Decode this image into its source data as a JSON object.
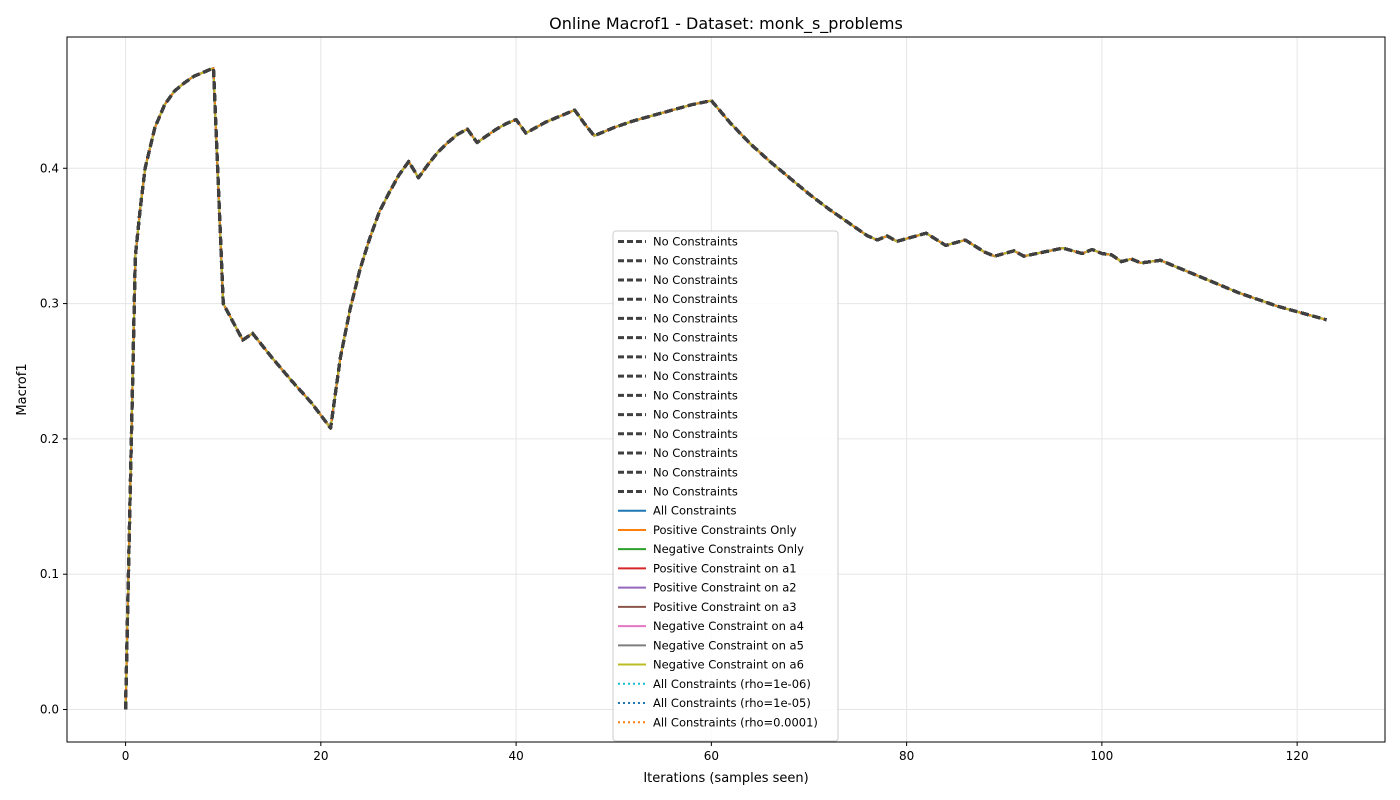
{
  "chart_data": {
    "type": "line",
    "title": "Online Macrof1 - Dataset: monk_s_problems",
    "xlabel": "Iterations (samples seen)",
    "ylabel": "Macrof1",
    "xlim": [
      -6,
      129
    ],
    "ylim": [
      -0.024,
      0.497
    ],
    "xticks": [
      0,
      20,
      40,
      60,
      80,
      100,
      120
    ],
    "yticks": [
      0.0,
      0.1,
      0.2,
      0.3,
      0.4
    ],
    "ytick_labels": [
      "0.0",
      "0.1",
      "0.2",
      "0.3",
      "0.4"
    ],
    "grid": true,
    "legend_position": "center",
    "x": [
      0,
      0.5,
      1,
      1.5,
      2,
      3,
      4,
      5,
      6,
      7,
      8,
      9,
      10,
      12,
      13,
      15,
      17,
      19,
      21,
      22,
      23,
      24,
      25,
      26,
      27,
      28,
      29,
      30,
      31,
      32,
      33,
      34,
      35,
      36,
      37,
      38,
      39,
      40,
      41,
      42,
      43,
      44,
      45,
      46,
      47,
      48,
      50,
      52,
      54,
      56,
      58,
      60,
      62,
      64,
      66,
      68,
      70,
      72,
      74,
      76,
      77,
      78,
      79,
      80,
      82,
      84,
      86,
      88,
      89,
      91,
      92,
      94,
      96,
      98,
      99,
      100,
      101,
      102,
      103,
      104,
      105,
      106,
      108,
      110,
      112,
      114,
      116,
      118,
      120,
      122,
      123
    ],
    "series": [
      {
        "name": "No Constraints",
        "color": "#404040",
        "style": "dashed",
        "width": 3,
        "values": [
          0.0,
          0.17,
          0.335,
          0.37,
          0.4,
          0.43,
          0.447,
          0.457,
          0.463,
          0.468,
          0.471,
          0.474,
          0.3,
          0.273,
          0.278,
          0.26,
          0.243,
          0.227,
          0.208,
          0.26,
          0.296,
          0.325,
          0.348,
          0.368,
          0.382,
          0.395,
          0.405,
          0.393,
          0.403,
          0.412,
          0.419,
          0.425,
          0.429,
          0.419,
          0.424,
          0.429,
          0.433,
          0.436,
          0.426,
          0.43,
          0.434,
          0.437,
          0.44,
          0.443,
          0.433,
          0.424,
          0.43,
          0.435,
          0.439,
          0.443,
          0.447,
          0.45,
          0.433,
          0.418,
          0.405,
          0.393,
          0.381,
          0.37,
          0.36,
          0.35,
          0.347,
          0.35,
          0.346,
          0.348,
          0.352,
          0.343,
          0.347,
          0.338,
          0.335,
          0.339,
          0.335,
          0.338,
          0.341,
          0.337,
          0.34,
          0.337,
          0.336,
          0.331,
          0.333,
          0.33,
          0.331,
          0.332,
          0.326,
          0.32,
          0.314,
          0.308,
          0.303,
          0.298,
          0.294,
          0.29,
          0.288
        ]
      },
      {
        "name": "No Constraints",
        "color": "#404040",
        "style": "dashed",
        "width": 3
      },
      {
        "name": "No Constraints",
        "color": "#404040",
        "style": "dashed",
        "width": 3
      },
      {
        "name": "No Constraints",
        "color": "#404040",
        "style": "dashed",
        "width": 3
      },
      {
        "name": "No Constraints",
        "color": "#404040",
        "style": "dashed",
        "width": 3
      },
      {
        "name": "No Constraints",
        "color": "#404040",
        "style": "dashed",
        "width": 3
      },
      {
        "name": "No Constraints",
        "color": "#404040",
        "style": "dashed",
        "width": 3
      },
      {
        "name": "No Constraints",
        "color": "#404040",
        "style": "dashed",
        "width": 3
      },
      {
        "name": "No Constraints",
        "color": "#404040",
        "style": "dashed",
        "width": 3
      },
      {
        "name": "No Constraints",
        "color": "#404040",
        "style": "dashed",
        "width": 3
      },
      {
        "name": "No Constraints",
        "color": "#404040",
        "style": "dashed",
        "width": 3
      },
      {
        "name": "No Constraints",
        "color": "#404040",
        "style": "dashed",
        "width": 3
      },
      {
        "name": "No Constraints",
        "color": "#404040",
        "style": "dashed",
        "width": 3
      },
      {
        "name": "No Constraints",
        "color": "#404040",
        "style": "dashed",
        "width": 3
      },
      {
        "name": "All Constraints",
        "color": "#1f77b4",
        "style": "solid",
        "width": 2
      },
      {
        "name": "Positive Constraints Only",
        "color": "#ff7f0e",
        "style": "solid",
        "width": 2
      },
      {
        "name": "Negative Constraints Only",
        "color": "#2ca02c",
        "style": "solid",
        "width": 2
      },
      {
        "name": "Positive Constraint on a1",
        "color": "#d62728",
        "style": "solid",
        "width": 2
      },
      {
        "name": "Positive Constraint on a2",
        "color": "#9467bd",
        "style": "solid",
        "width": 2
      },
      {
        "name": "Positive Constraint on a3",
        "color": "#8c564b",
        "style": "solid",
        "width": 2
      },
      {
        "name": "Negative Constraint on a4",
        "color": "#e377c2",
        "style": "solid",
        "width": 2
      },
      {
        "name": "Negative Constraint on a5",
        "color": "#7f7f7f",
        "style": "solid",
        "width": 2
      },
      {
        "name": "Negative Constraint on a6",
        "color": "#bcbd22",
        "style": "solid",
        "width": 2
      },
      {
        "name": "All Constraints (rho=1e-06)",
        "color": "#17becf",
        "style": "dotted",
        "width": 2
      },
      {
        "name": "All Constraints (rho=1e-05)",
        "color": "#1f77b4",
        "style": "dotted",
        "width": 2
      },
      {
        "name": "All Constraints (rho=0.0001)",
        "color": "#ff7f0e",
        "style": "dotted",
        "width": 2
      }
    ]
  }
}
